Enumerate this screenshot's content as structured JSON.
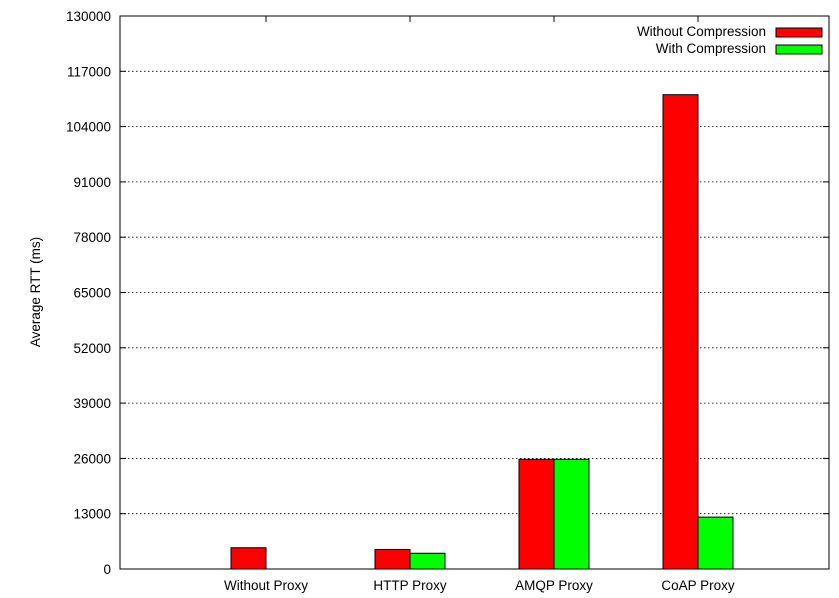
{
  "chart_data": {
    "type": "bar",
    "title": "",
    "xlabel": "",
    "ylabel": "Average RTT (ms)",
    "categories": [
      "Without Proxy",
      "HTTP Proxy",
      "AMQP Proxy",
      "CoAP Proxy"
    ],
    "series": [
      {
        "name": "Without Compression",
        "color": "#ff0000",
        "values": [
          5000,
          4600,
          25800,
          111500
        ]
      },
      {
        "name": "With Compression",
        "color": "#00ff00",
        "values": [
          null,
          3700,
          25800,
          12200
        ]
      }
    ],
    "ylim": [
      0,
      130000
    ],
    "yticks": [
      0,
      13000,
      26000,
      39000,
      52000,
      65000,
      78000,
      91000,
      104000,
      117000,
      130000
    ],
    "grid": true,
    "legend_position": "top-right"
  }
}
